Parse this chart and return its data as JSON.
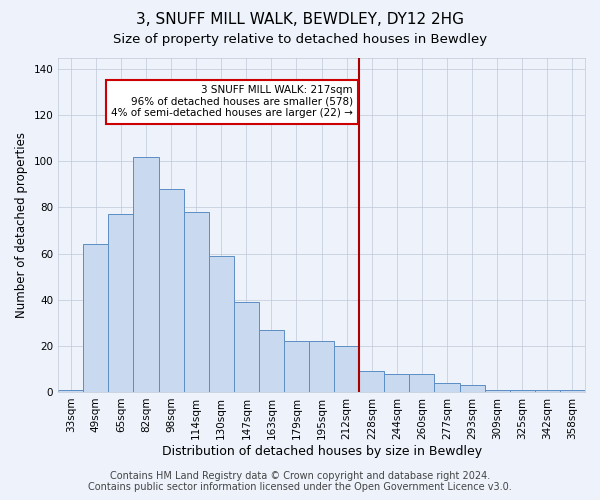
{
  "title": "3, SNUFF MILL WALK, BEWDLEY, DY12 2HG",
  "subtitle": "Size of property relative to detached houses in Bewdley",
  "xlabel": "Distribution of detached houses by size in Bewdley",
  "ylabel": "Number of detached properties",
  "bar_labels": [
    "33sqm",
    "49sqm",
    "65sqm",
    "82sqm",
    "98sqm",
    "114sqm",
    "130sqm",
    "147sqm",
    "163sqm",
    "179sqm",
    "195sqm",
    "212sqm",
    "228sqm",
    "244sqm",
    "260sqm",
    "277sqm",
    "293sqm",
    "309sqm",
    "325sqm",
    "342sqm",
    "358sqm"
  ],
  "bar_values": [
    1,
    64,
    77,
    102,
    88,
    78,
    59,
    39,
    27,
    22,
    22,
    20,
    9,
    8,
    8,
    4,
    3,
    1,
    1,
    1,
    1
  ],
  "bar_color": "#c9d9f0",
  "bar_edge_color": "#5b8ec4",
  "bg_color": "#edf2fb",
  "grid_color": "#c0c8d8",
  "red_line_x": 11.5,
  "red_line_color": "#aa0000",
  "annotation_line1": "3 SNUFF MILL WALK: 217sqm",
  "annotation_line2": "96% of detached houses are smaller (578)",
  "annotation_line3": "4% of semi-detached houses are larger (22) →",
  "annotation_box_color": "#ffffff",
  "annotation_border_color": "#cc0000",
  "ylim": [
    0,
    145
  ],
  "yticks": [
    0,
    20,
    40,
    60,
    80,
    100,
    120,
    140
  ],
  "footer_text": "Contains HM Land Registry data © Crown copyright and database right 2024.\nContains public sector information licensed under the Open Government Licence v3.0.",
  "title_fontsize": 11,
  "subtitle_fontsize": 9.5,
  "xlabel_fontsize": 9,
  "ylabel_fontsize": 8.5,
  "tick_fontsize": 7.5,
  "annotation_fontsize": 7.5,
  "footer_fontsize": 7
}
